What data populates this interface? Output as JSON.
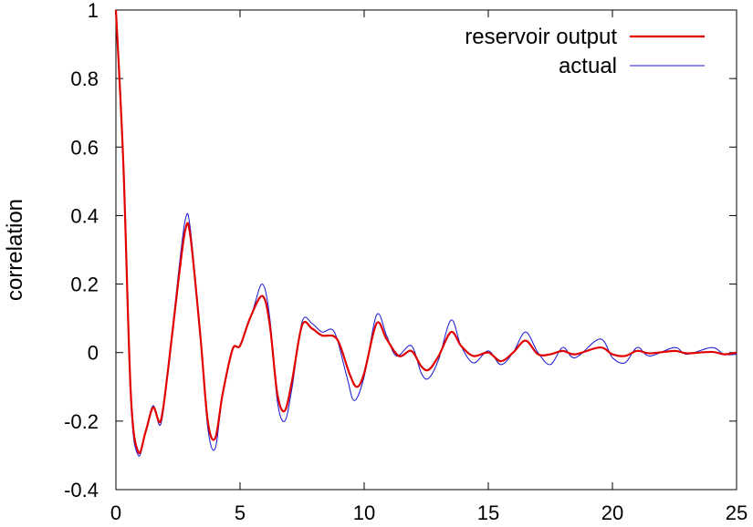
{
  "chart_data": {
    "type": "line",
    "title": "",
    "xlabel": "",
    "ylabel": "correlation",
    "xlim": [
      0,
      25
    ],
    "ylim": [
      -0.4,
      1
    ],
    "xticks": [
      0,
      5,
      10,
      15,
      20,
      25
    ],
    "yticks": [
      -0.4,
      -0.2,
      0,
      0.2,
      0.4,
      0.6,
      0.8,
      1
    ],
    "ytick_labels": [
      "-0.4",
      "-0.2",
      "0",
      "0.2",
      "0.4",
      "0.6",
      "0.8",
      "1"
    ],
    "grid": false,
    "legend_position": "top-right",
    "series": [
      {
        "name": "reservoir output",
        "color": "#e00000",
        "points": [
          [
            0,
            1
          ],
          [
            0.3,
            0.55
          ],
          [
            0.6,
            -0.12
          ],
          [
            0.9,
            -0.29
          ],
          [
            1.2,
            -0.23
          ],
          [
            1.5,
            -0.16
          ],
          [
            1.8,
            -0.2
          ],
          [
            2.1,
            -0.05
          ],
          [
            2.5,
            0.2
          ],
          [
            2.8,
            0.36
          ],
          [
            3.0,
            0.34
          ],
          [
            3.4,
            0.05
          ],
          [
            3.7,
            -0.2
          ],
          [
            4.0,
            -0.25
          ],
          [
            4.3,
            -0.12
          ],
          [
            4.7,
            0.01
          ],
          [
            5.0,
            0.02
          ],
          [
            5.4,
            0.1
          ],
          [
            5.9,
            0.165
          ],
          [
            6.2,
            0.08
          ],
          [
            6.5,
            -0.12
          ],
          [
            6.8,
            -0.17
          ],
          [
            7.1,
            -0.08
          ],
          [
            7.5,
            0.08
          ],
          [
            7.9,
            0.07
          ],
          [
            8.3,
            0.05
          ],
          [
            8.9,
            0.04
          ],
          [
            9.4,
            -0.06
          ],
          [
            9.7,
            -0.1
          ],
          [
            10.0,
            -0.06
          ],
          [
            10.5,
            0.085
          ],
          [
            10.9,
            0.04
          ],
          [
            11.4,
            -0.01
          ],
          [
            11.9,
            0.005
          ],
          [
            12.3,
            -0.04
          ],
          [
            12.6,
            -0.05
          ],
          [
            13.0,
            -0.01
          ],
          [
            13.5,
            0.06
          ],
          [
            13.9,
            0.02
          ],
          [
            14.4,
            -0.01
          ],
          [
            15.0,
            0.0
          ],
          [
            15.5,
            -0.025
          ],
          [
            16.0,
            0.0
          ],
          [
            16.5,
            0.035
          ],
          [
            17.0,
            -0.005
          ],
          [
            17.5,
            -0.005
          ],
          [
            18.0,
            0.005
          ],
          [
            18.5,
            -0.005
          ],
          [
            19.5,
            0.015
          ],
          [
            20.0,
            -0.005
          ],
          [
            20.5,
            -0.01
          ],
          [
            21.0,
            0.005
          ],
          [
            21.5,
            -0.002
          ],
          [
            22.5,
            0.005
          ],
          [
            23.0,
            -0.002
          ],
          [
            24.0,
            0.002
          ],
          [
            24.5,
            -0.005
          ],
          [
            25.0,
            0.0
          ]
        ]
      },
      {
        "name": "actual",
        "color": "#1414d2",
        "points": [
          [
            0,
            1
          ],
          [
            0.3,
            0.55
          ],
          [
            0.6,
            -0.14
          ],
          [
            0.9,
            -0.3
          ],
          [
            1.2,
            -0.23
          ],
          [
            1.5,
            -0.155
          ],
          [
            1.8,
            -0.21
          ],
          [
            2.1,
            -0.05
          ],
          [
            2.5,
            0.22
          ],
          [
            2.8,
            0.39
          ],
          [
            3.0,
            0.36
          ],
          [
            3.4,
            0.05
          ],
          [
            3.7,
            -0.22
          ],
          [
            4.0,
            -0.28
          ],
          [
            4.3,
            -0.12
          ],
          [
            4.7,
            0.01
          ],
          [
            5.0,
            0.02
          ],
          [
            5.5,
            0.12
          ],
          [
            5.9,
            0.2
          ],
          [
            6.2,
            0.1
          ],
          [
            6.5,
            -0.14
          ],
          [
            6.8,
            -0.2
          ],
          [
            7.1,
            -0.1
          ],
          [
            7.5,
            0.09
          ],
          [
            7.9,
            0.085
          ],
          [
            8.3,
            0.06
          ],
          [
            8.8,
            0.06
          ],
          [
            9.3,
            -0.07
          ],
          [
            9.6,
            -0.14
          ],
          [
            10.0,
            -0.07
          ],
          [
            10.5,
            0.11
          ],
          [
            10.9,
            0.05
          ],
          [
            11.3,
            -0.01
          ],
          [
            11.9,
            0.02
          ],
          [
            12.3,
            -0.06
          ],
          [
            12.6,
            -0.075
          ],
          [
            13.0,
            -0.02
          ],
          [
            13.5,
            0.095
          ],
          [
            13.9,
            0.02
          ],
          [
            14.4,
            -0.03
          ],
          [
            15.0,
            0.005
          ],
          [
            15.5,
            -0.035
          ],
          [
            16.0,
            0.0
          ],
          [
            16.5,
            0.06
          ],
          [
            17.0,
            0.0
          ],
          [
            17.5,
            -0.035
          ],
          [
            18.0,
            0.015
          ],
          [
            18.5,
            -0.015
          ],
          [
            19.5,
            0.04
          ],
          [
            20.0,
            -0.015
          ],
          [
            20.5,
            -0.03
          ],
          [
            21.0,
            0.015
          ],
          [
            21.5,
            -0.01
          ],
          [
            22.5,
            0.015
          ],
          [
            23.0,
            -0.005
          ],
          [
            24.0,
            0.015
          ],
          [
            24.5,
            -0.005
          ],
          [
            25.0,
            -0.005
          ]
        ]
      }
    ]
  }
}
